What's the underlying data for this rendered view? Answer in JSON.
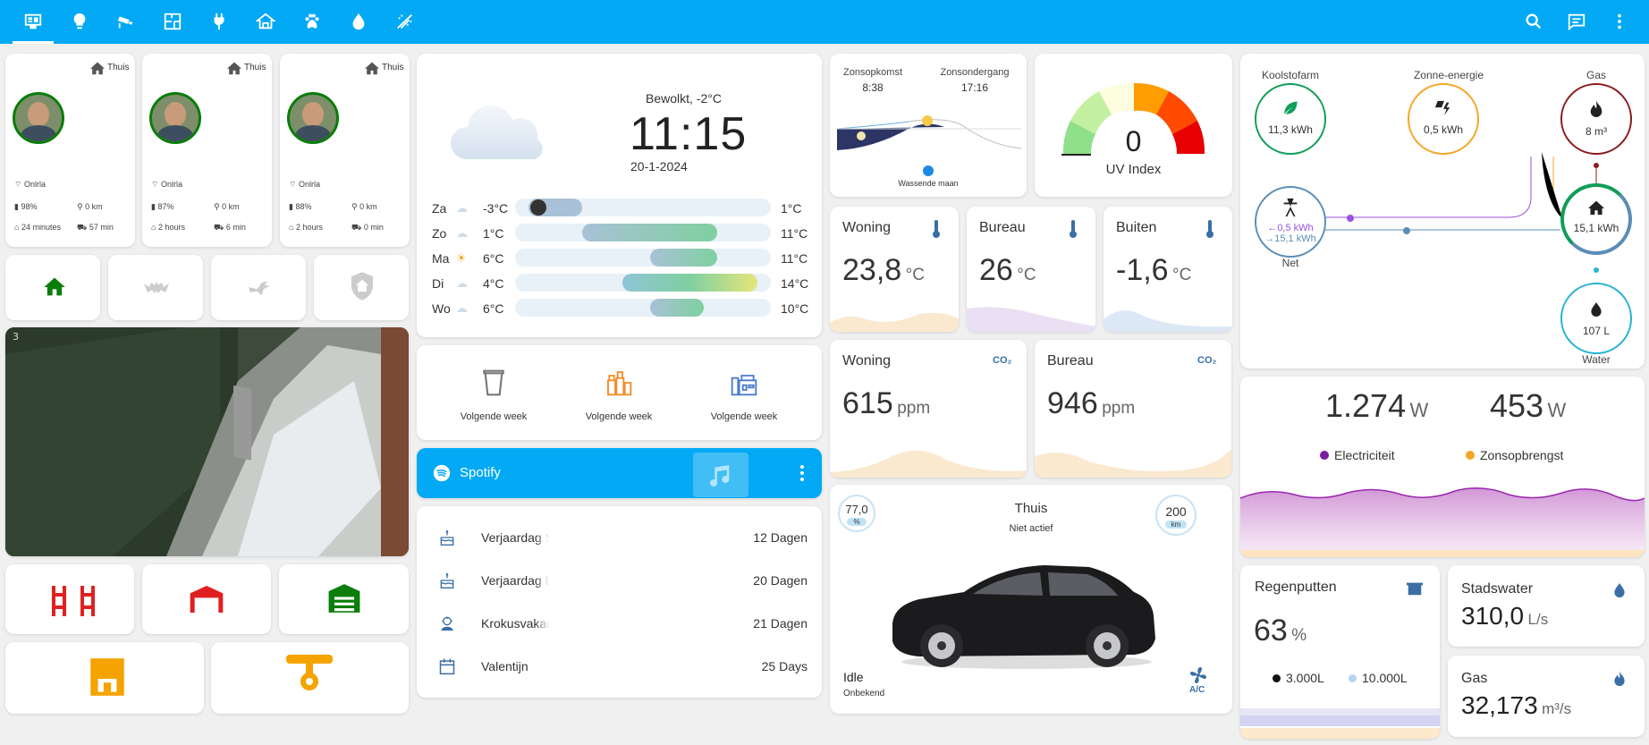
{
  "toolbar": {
    "icons": [
      "monitor-icon",
      "lightbulb-icon",
      "cctv-icon",
      "floorplan-icon",
      "plug-icon",
      "house-icon",
      "paw-icon",
      "water-drop-icon",
      "sprinkler-icon"
    ],
    "right_icons": [
      "search-icon",
      "chat-icon",
      "menu-dots-icon"
    ]
  },
  "persons": [
    {
      "location": "Thuis",
      "wifi": "Onlrla",
      "battery": "98%",
      "distance": "0 km",
      "time_home": "24 minutes",
      "time_car": "57 min"
    },
    {
      "location": "Thuis",
      "wifi": "Onlrla",
      "battery": "87%",
      "distance": "0 km",
      "time_home": "2 hours",
      "time_car": "6 min"
    },
    {
      "location": "Thuis",
      "wifi": "Onlrla",
      "battery": "88%",
      "distance": "0 km",
      "time_home": "2 hours",
      "time_car": "0 min"
    }
  ],
  "weather": {
    "condition": "Bewolkt, -2°C",
    "time": "11:15",
    "date": "20-1-2024",
    "forecast": [
      {
        "day": "Za",
        "low": "-3°C",
        "high": "1°C",
        "lowv": -3,
        "highv": 1
      },
      {
        "day": "Zo",
        "low": "1°C",
        "high": "11°C",
        "lowv": 1,
        "highv": 11
      },
      {
        "day": "Ma",
        "low": "6°C",
        "high": "11°C",
        "lowv": 6,
        "highv": 11
      },
      {
        "day": "Di",
        "low": "4°C",
        "high": "14°C",
        "lowv": 4,
        "highv": 14
      },
      {
        "day": "Wo",
        "low": "6°C",
        "high": "10°C",
        "lowv": 6,
        "highv": 10
      }
    ]
  },
  "waste": [
    {
      "label": "Volgende week",
      "color": "#777"
    },
    {
      "label": "Volgende week",
      "color": "#f28c28"
    },
    {
      "label": "Volgende week",
      "color": "#4a7cc9"
    }
  ],
  "spotify": {
    "title": "Spotify"
  },
  "calendar": [
    {
      "name": "Verjaardag S",
      "days": "12 Dagen"
    },
    {
      "name": "Verjaardag E",
      "days": "20 Dagen"
    },
    {
      "name": "Krokusvakantie",
      "days": "21 Dagen"
    },
    {
      "name": "Valentijn",
      "days": "25 Days"
    }
  ],
  "sun": {
    "rise_label": "Zonsopkomst",
    "rise": "8:38",
    "set_label": "Zonsondergang",
    "set": "17:16",
    "moon": "Wassende maan"
  },
  "uv": {
    "value": "0",
    "label": "UV Index"
  },
  "temps": [
    {
      "name": "Woning",
      "value": "23,8",
      "unit": "°C"
    },
    {
      "name": "Bureau",
      "value": "26",
      "unit": "°C"
    },
    {
      "name": "Buiten",
      "value": "-1,6",
      "unit": "°C"
    }
  ],
  "co2": [
    {
      "name": "Woning",
      "value": "615",
      "unit": "ppm"
    },
    {
      "name": "Bureau",
      "value": "946",
      "unit": "ppm"
    }
  ],
  "co2_icon": "CO₂",
  "car": {
    "battery": "77,0",
    "battery_unit": "%",
    "range": "200",
    "range_unit": "km",
    "location": "Thuis",
    "state": "Niet actief",
    "status": "Idle",
    "status2": "Onbekend",
    "ac": "A/C"
  },
  "energy": {
    "koolstof_label": "Koolstofarm",
    "koolstof": "11,3 kWh",
    "solar_label": "Zonne-energie",
    "solar": "0,5 kWh",
    "gas_label": "Gas",
    "gas": "8 m³",
    "grid_in": "←0,5 kWh",
    "grid_out": "→15,1 kWh",
    "grid_label": "Net",
    "home": "15,1 kWh",
    "water": "107 L",
    "water_label": "Water"
  },
  "power": {
    "elec": "1.274",
    "elec_unit": "W",
    "solar": "453",
    "solar_unit": "W",
    "elec_label": "Electriciteit",
    "solar_label": "Zonsopbrengst"
  },
  "rain": {
    "name": "Regenputten",
    "value": "63",
    "unit": "%",
    "leg1": "3.000L",
    "leg2": "10.000L"
  },
  "water": {
    "name": "Stadswater",
    "value": "310,0",
    "unit": "L/s"
  },
  "gasflow": {
    "name": "Gas",
    "value": "32,173",
    "unit": "m³/s"
  }
}
